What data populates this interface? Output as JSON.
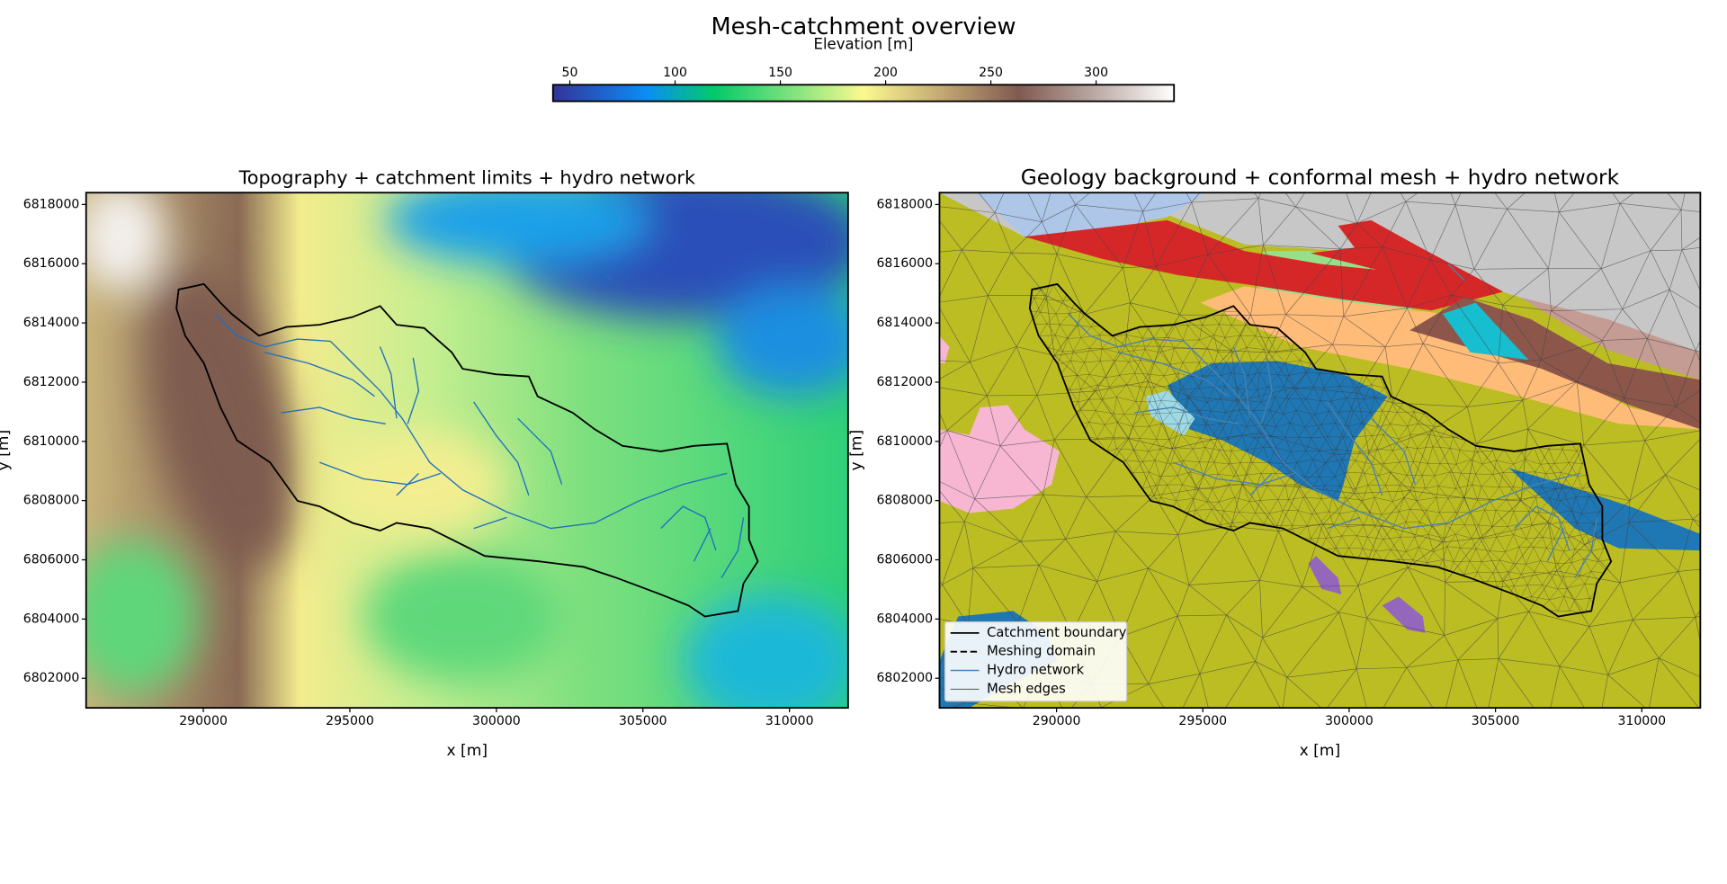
{
  "title": "Mesh-catchment overview",
  "chart_data": [
    {
      "type": "map",
      "title": "Topography + catchment limits + hydro network",
      "xlabel": "x [m]",
      "ylabel": "y [m]",
      "xlim": [
        286000,
        312000
      ],
      "ylim": [
        6801000,
        6818400
      ],
      "xticks": [
        290000,
        295000,
        300000,
        305000,
        310000
      ],
      "yticks": [
        6802000,
        6804000,
        6806000,
        6808000,
        6810000,
        6812000,
        6814000,
        6816000,
        6818000
      ],
      "colorbar": {
        "label": "Elevation [m]",
        "lim": [
          42,
          337
        ],
        "ticks": [
          50,
          100,
          150,
          200,
          250,
          300
        ]
      }
    },
    {
      "type": "map",
      "title": "Geology background + conformal mesh + hydro network",
      "xlabel": "x [m]",
      "ylabel": "y [m]",
      "xlim": [
        286000,
        312000
      ],
      "ylim": [
        6801000,
        6818400
      ],
      "xticks": [
        290000,
        295000,
        300000,
        305000,
        310000
      ],
      "yticks": [
        6802000,
        6804000,
        6806000,
        6808000,
        6810000,
        6812000,
        6814000,
        6816000,
        6818000
      ],
      "legend": {
        "position": "lower left",
        "entries": [
          {
            "name": "Catchment boundary",
            "color": "#000000",
            "style": "solid",
            "width": 1.5
          },
          {
            "name": "Meshing domain",
            "color": "#000000",
            "style": "dashed",
            "width": 1.5
          },
          {
            "name": "Hydro network",
            "color": "#4682b4",
            "style": "solid",
            "width": 1.2
          },
          {
            "name": "Mesh edges",
            "color": "#555555",
            "style": "solid",
            "width": 0.8
          }
        ]
      }
    }
  ]
}
